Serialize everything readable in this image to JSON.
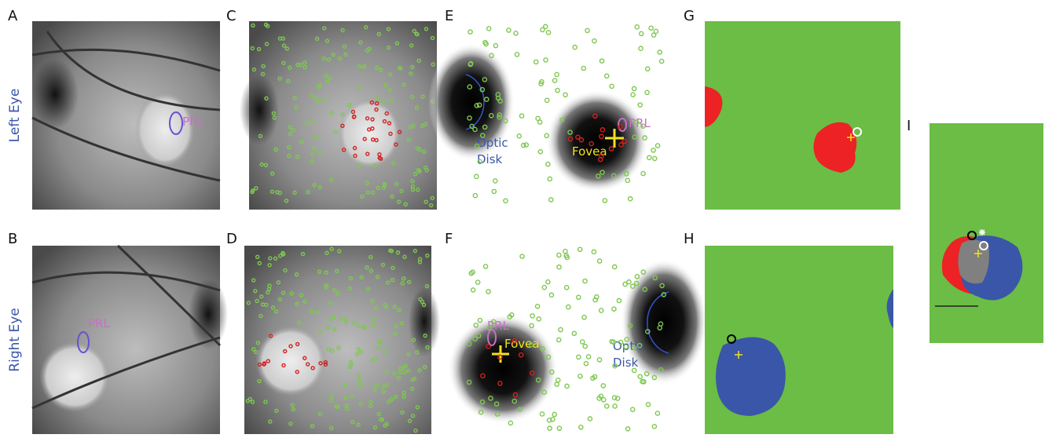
{
  "row_labels": [
    "Left Eye",
    "Right Eye"
  ],
  "panels": [
    {
      "letter": "A",
      "labels": [
        "PRL"
      ]
    },
    {
      "letter": "B",
      "labels": [
        "PRL"
      ]
    },
    {
      "letter": "C",
      "labels": []
    },
    {
      "letter": "D",
      "labels": []
    },
    {
      "letter": "E",
      "labels": [
        "Optic",
        "Disk",
        "Fovea",
        "PRL"
      ]
    },
    {
      "letter": "F",
      "labels": [
        "Optic",
        "Disk",
        "Fovea",
        "PRL"
      ]
    },
    {
      "letter": "G",
      "labels": []
    },
    {
      "letter": "H",
      "labels": []
    },
    {
      "letter": "I",
      "labels": []
    }
  ]
}
